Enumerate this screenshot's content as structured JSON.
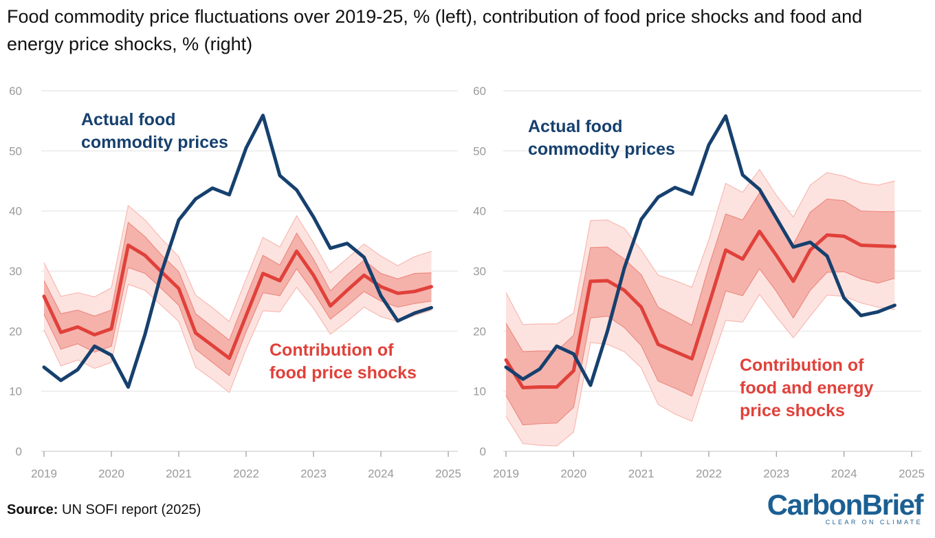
{
  "title": "Food commodity price fluctuations over 2019-25, % (left), contribution of food price shocks and food and energy price shocks, % (right)",
  "source": {
    "label": "Source:",
    "text": "UN SOFI report (2025)"
  },
  "logo": {
    "main": "CarbonBrief",
    "tagline": "CLEAR ON CLIMATE"
  },
  "colors": {
    "actual": "#16406e",
    "contribution": "#e0413a",
    "band_inner": "#f4b2ab",
    "band_outer": "#fde3df",
    "grid": "#e4e4e4"
  },
  "chart_data": [
    {
      "type": "line",
      "panel": "left",
      "x": [
        2019.0,
        2019.25,
        2019.5,
        2019.75,
        2020.0,
        2020.25,
        2020.5,
        2020.75,
        2021.0,
        2021.25,
        2021.5,
        2021.75,
        2022.0,
        2022.25,
        2022.5,
        2022.75,
        2023.0,
        2023.25,
        2023.5,
        2023.75,
        2024.0,
        2024.25,
        2024.5,
        2024.75
      ],
      "xticks": [
        "2019",
        "2020",
        "2021",
        "2022",
        "2023",
        "2024",
        "2025"
      ],
      "xlim": [
        2019,
        2025
      ],
      "ylim": [
        0,
        60
      ],
      "yticks": [
        "0",
        "10",
        "20",
        "30",
        "40",
        "50",
        "60"
      ],
      "series": [
        {
          "name": "Actual food commodity prices",
          "values": [
            14,
            11.8,
            13.6,
            17.5,
            16,
            10.7,
            19.5,
            30,
            38.5,
            42,
            43.8,
            42.7,
            50.5,
            55.9,
            45.9,
            43.5,
            39,
            33.8,
            34.6,
            32.3,
            25.9,
            21.7,
            23,
            23.9
          ]
        },
        {
          "name": "Contribution of food price shocks",
          "values": [
            25.8,
            19.8,
            20.7,
            19.4,
            20.4,
            34.3,
            32.6,
            29.8,
            27.1,
            19.7,
            17.6,
            15.5,
            22.6,
            29.6,
            28.4,
            33.3,
            29.3,
            24.2,
            26.8,
            29.3,
            27.4,
            26.3,
            26.6,
            27.4
          ]
        }
      ],
      "bands": [
        {
          "name": "outer",
          "lower": [
            20.2,
            14.2,
            15.2,
            13.8,
            14.8,
            27.8,
            26.8,
            24.2,
            21.6,
            14.0,
            12.0,
            9.8,
            17.0,
            23.4,
            23.2,
            27.3,
            23.8,
            19.5,
            21.6,
            24.0,
            22.4,
            21.6,
            22.6,
            23.5
          ],
          "upper": [
            31.4,
            25.8,
            26.4,
            25.7,
            27.2,
            40.9,
            38.5,
            35.3,
            32.4,
            26.0,
            23.9,
            21.6,
            28.7,
            35.6,
            34.0,
            39.2,
            34.7,
            29.7,
            32.1,
            34.5,
            32.5,
            30.9,
            32.4,
            33.3
          ]
        },
        {
          "name": "inner",
          "lower": [
            22.8,
            17.0,
            17.9,
            16.5,
            17.5,
            30.6,
            29.6,
            27.0,
            24.3,
            17.0,
            14.8,
            12.6,
            19.9,
            26.4,
            25.9,
            30.4,
            26.5,
            22.0,
            24.2,
            26.6,
            25.0,
            24.0,
            24.6,
            25.0
          ],
          "upper": [
            28.4,
            22.9,
            23.5,
            22.5,
            23.5,
            38.1,
            35.7,
            32.6,
            29.9,
            22.9,
            20.7,
            18.5,
            25.7,
            32.6,
            31.0,
            36.3,
            32.0,
            26.7,
            29.4,
            31.8,
            29.6,
            28.7,
            29.6,
            29.7
          ]
        }
      ],
      "annotations": [
        {
          "series": "actual",
          "lines": [
            "Actual food",
            "commodity prices"
          ]
        },
        {
          "series": "contribution",
          "lines": [
            "Contribution of",
            "food price shocks"
          ]
        }
      ]
    },
    {
      "type": "line",
      "panel": "right",
      "x": [
        2019.0,
        2019.25,
        2019.5,
        2019.75,
        2020.0,
        2020.25,
        2020.5,
        2020.75,
        2021.0,
        2021.25,
        2021.5,
        2021.75,
        2022.0,
        2022.25,
        2022.5,
        2022.75,
        2023.0,
        2023.25,
        2023.5,
        2023.75,
        2024.0,
        2024.25,
        2024.5,
        2024.75
      ],
      "xticks": [
        "2019",
        "2020",
        "2021",
        "2022",
        "2023",
        "2024",
        "2025"
      ],
      "xlim": [
        2019,
        2025
      ],
      "ylim": [
        0,
        60
      ],
      "yticks": [
        "0",
        "10",
        "20",
        "30",
        "40",
        "50",
        "60"
      ],
      "series": [
        {
          "name": "Actual food commodity prices",
          "values": [
            14,
            12,
            13.7,
            17.5,
            16.2,
            11,
            20,
            30.5,
            38.6,
            42.3,
            43.9,
            42.8,
            51,
            55.8,
            46,
            43.6,
            38.8,
            34,
            34.8,
            32.5,
            25.5,
            22.6,
            23.2,
            24.3
          ]
        },
        {
          "name": "Contribution of food and energy price shocks",
          "values": [
            15.2,
            10.6,
            10.7,
            10.7,
            13.4,
            28.3,
            28.4,
            26.8,
            24.0,
            17.8,
            16.6,
            15.4,
            24.4,
            33.5,
            32.0,
            36.6,
            32.6,
            28.3,
            33.5,
            36.0,
            35.8,
            34.3,
            34.2,
            34.1
          ]
        }
      ],
      "bands": [
        {
          "name": "outer",
          "lower": [
            5.8,
            1.3,
            1.0,
            0.9,
            3.2,
            18.1,
            17.8,
            16.6,
            13.9,
            7.8,
            6.2,
            5.0,
            13.6,
            21.8,
            21.5,
            26.1,
            22.4,
            18.9,
            22.5,
            26.0,
            25.8,
            24.7,
            24.0,
            23.6
          ],
          "upper": [
            26.4,
            21.1,
            21.2,
            21.2,
            23.0,
            38.4,
            38.5,
            37.1,
            33.5,
            29.3,
            28.4,
            27.3,
            35.2,
            44.6,
            43.1,
            46.9,
            42.6,
            39.0,
            44.3,
            46.4,
            45.8,
            44.7,
            44.3,
            45.0
          ]
        },
        {
          "name": "inner",
          "lower": [
            9.3,
            4.4,
            4.6,
            4.7,
            7.3,
            22.2,
            22.5,
            20.6,
            17.6,
            11.7,
            10.5,
            9.2,
            17.6,
            26.7,
            25.9,
            30.4,
            26.6,
            22.2,
            26.8,
            29.8,
            29.9,
            28.7,
            28.0,
            28.8
          ],
          "upper": [
            21.3,
            16.6,
            16.7,
            16.7,
            19.3,
            33.9,
            34.0,
            32.0,
            29.4,
            24.0,
            22.5,
            21.0,
            30.8,
            39.5,
            38.5,
            43.0,
            38.5,
            34.4,
            39.8,
            42.0,
            41.7,
            40.0,
            39.9,
            39.9
          ]
        }
      ],
      "annotations": [
        {
          "series": "actual",
          "lines": [
            "Actual food",
            "commodity prices"
          ]
        },
        {
          "series": "contribution",
          "lines": [
            "Contribution of",
            "food and energy",
            "price shocks"
          ]
        }
      ]
    }
  ]
}
